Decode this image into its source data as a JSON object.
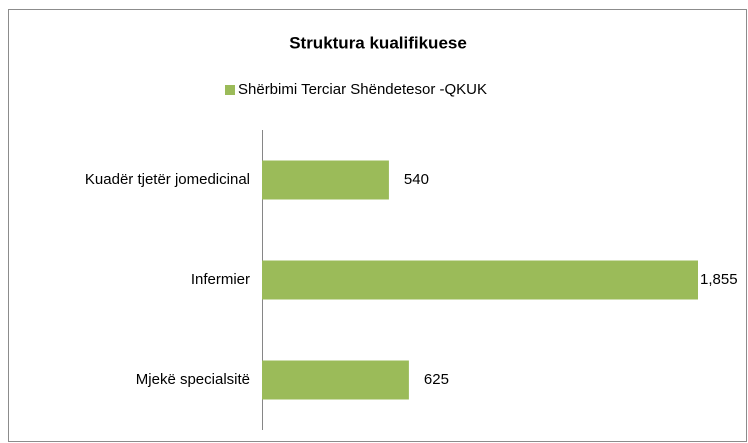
{
  "chart_data": {
    "type": "bar",
    "orientation": "horizontal",
    "title": "Struktura kualifikuese",
    "categories": [
      "Kuadër tjetër jomedicinal",
      "Infermier",
      "Mjekë specialsitë"
    ],
    "series": [
      {
        "name": "Shërbimi Terciar Shëndetesor -QKUK",
        "color": "#9bbb59",
        "values": [
          540,
          1855,
          625
        ],
        "value_labels": [
          "540",
          "1,855",
          "625"
        ]
      }
    ],
    "legend": "top"
  }
}
